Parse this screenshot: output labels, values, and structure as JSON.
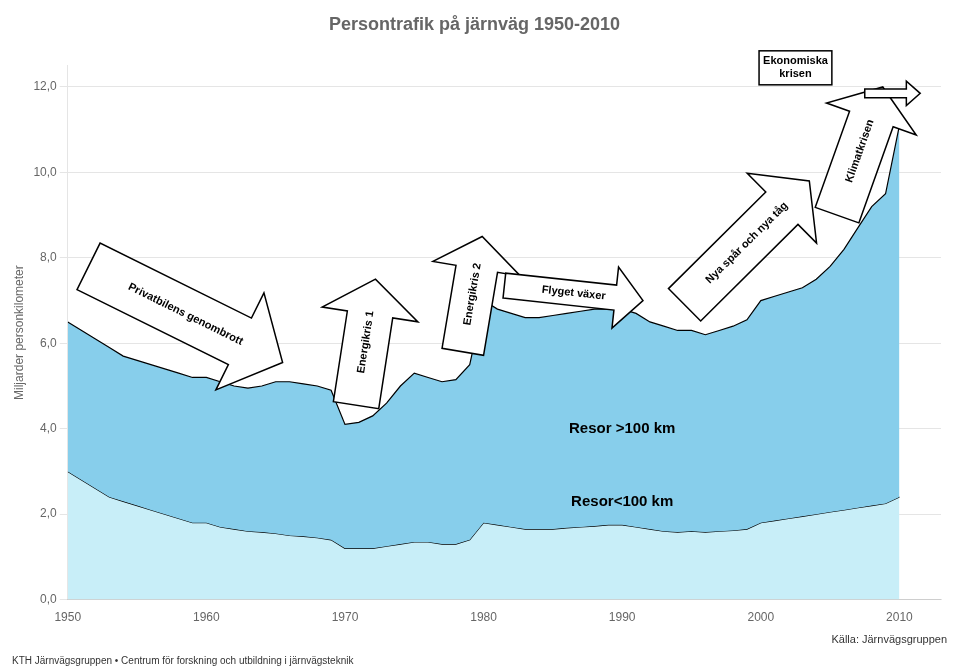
{
  "chart_data": {
    "type": "area",
    "title": "Persontrafik på järnväg 1950-2010",
    "ylabel": "Miljarder personkilometer",
    "x": [
      1950,
      1951,
      1952,
      1953,
      1954,
      1955,
      1956,
      1957,
      1958,
      1959,
      1960,
      1961,
      1962,
      1963,
      1964,
      1965,
      1966,
      1967,
      1968,
      1969,
      1970,
      1971,
      1972,
      1973,
      1974,
      1975,
      1976,
      1977,
      1978,
      1979,
      1980,
      1981,
      1982,
      1983,
      1984,
      1985,
      1986,
      1987,
      1988,
      1989,
      1990,
      1991,
      1992,
      1993,
      1994,
      1995,
      1996,
      1997,
      1998,
      1999,
      2000,
      2001,
      2002,
      2003,
      2004,
      2005,
      2006,
      2007,
      2008,
      2009,
      2010
    ],
    "series": [
      {
        "color": "#87CEEB",
        "values": [
          6.5,
          6.3,
          6.1,
          5.9,
          5.7,
          5.6,
          5.5,
          5.4,
          5.3,
          5.2,
          5.2,
          5.1,
          5.0,
          4.95,
          5.0,
          5.1,
          5.1,
          5.05,
          5.0,
          4.9,
          4.1,
          4.15,
          4.3,
          4.6,
          5.0,
          5.3,
          5.2,
          5.1,
          5.15,
          5.5,
          7.0,
          6.8,
          6.7,
          6.6,
          6.6,
          6.65,
          6.7,
          6.75,
          6.8,
          6.8,
          6.8,
          6.7,
          6.5,
          6.4,
          6.3,
          6.3,
          6.2,
          6.3,
          6.4,
          6.55,
          7.0,
          7.1,
          7.2,
          7.3,
          7.5,
          7.8,
          8.2,
          8.7,
          9.2,
          9.5,
          11.1
        ]
      },
      {
        "color": "#C8EEF8",
        "values": [
          3.0,
          2.8,
          2.6,
          2.4,
          2.3,
          2.2,
          2.1,
          2.0,
          1.9,
          1.8,
          1.8,
          1.7,
          1.65,
          1.6,
          1.58,
          1.55,
          1.5,
          1.48,
          1.45,
          1.4,
          1.2,
          1.2,
          1.2,
          1.25,
          1.3,
          1.35,
          1.35,
          1.3,
          1.3,
          1.4,
          1.8,
          1.75,
          1.7,
          1.65,
          1.65,
          1.65,
          1.68,
          1.7,
          1.72,
          1.75,
          1.75,
          1.7,
          1.65,
          1.6,
          1.58,
          1.6,
          1.58,
          1.6,
          1.62,
          1.65,
          1.8,
          1.85,
          1.9,
          1.95,
          2.0,
          2.05,
          2.1,
          2.15,
          2.2,
          2.25,
          2.4
        ]
      }
    ],
    "xlim": [
      1950,
      2013
    ],
    "xticks": [
      1950,
      1960,
      1970,
      1980,
      1990,
      2000,
      2010
    ],
    "ylim": [
      0.0,
      12.5
    ],
    "yticks": [
      {
        "value": 0.0,
        "label": "0,0"
      },
      {
        "value": 2.0,
        "label": "2,0"
      },
      {
        "value": 4.0,
        "label": "4,0"
      },
      {
        "value": 6.0,
        "label": "6,0"
      },
      {
        "value": 8.0,
        "label": "8,0"
      },
      {
        "value": 10.0,
        "label": "10,0"
      },
      {
        "value": 12.0,
        "label": "12,0"
      }
    ],
    "grid": "y",
    "annotations": [
      "Resor >100 km",
      "Resor<100 km",
      "Privatbilens genombrott",
      "Energikris 1",
      "Energikris 2",
      "Flyget växer",
      "Nya spår och nya tåg",
      "Klimatkrisen",
      "Ekonomiska\nkrisen",
      "Källa: Järnvägsgruppen",
      "KTH Järnvägsgruppen • Centrum för forskning och utbildning i järnvägsteknik"
    ]
  }
}
